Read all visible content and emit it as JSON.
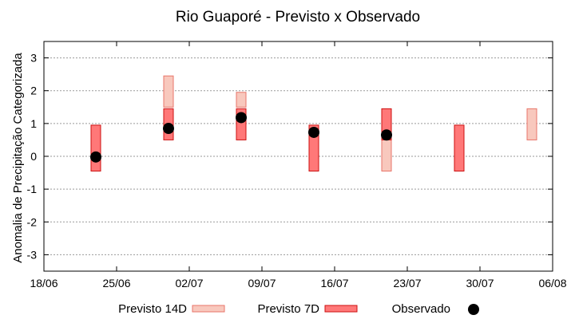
{
  "chart_data": {
    "type": "range-bar",
    "title": "Rio Guaporé - Previsto x Observado",
    "xlabel": "",
    "ylabel": "Anomalia de Precipitação Categorizada",
    "x_tick_labels": [
      "18/06",
      "25/06",
      "02/07",
      "09/07",
      "16/07",
      "23/07",
      "30/07",
      "06/08"
    ],
    "x_ticks": [
      "2023-06-18",
      "2023-06-25",
      "2023-07-02",
      "2023-07-09",
      "2023-07-16",
      "2023-07-23",
      "2023-07-30",
      "2023-08-06"
    ],
    "xlim": [
      "2023-06-18",
      "2023-08-06"
    ],
    "y_ticks": [
      3,
      2,
      1,
      0,
      -1,
      -2,
      -3
    ],
    "ylim": [
      -3.5,
      3.5
    ],
    "grid": true,
    "legend_position": "bottom",
    "series": [
      {
        "name": "Previsto 14D",
        "kind": "range",
        "color": "#f8c8bd",
        "stroke": "#e8756a",
        "points": [
          {
            "x": "2023-06-30",
            "low": 1.5,
            "high": 2.45
          },
          {
            "x": "2023-07-07",
            "low": 1.5,
            "high": 1.95
          },
          {
            "x": "2023-07-21",
            "low": -0.45,
            "high": 0.95
          },
          {
            "x": "2023-08-04",
            "low": 0.5,
            "high": 1.45
          }
        ]
      },
      {
        "name": "Previsto 7D",
        "kind": "range",
        "color": "#ff7878",
        "stroke": "#cc1111",
        "points": [
          {
            "x": "2023-06-23",
            "low": -0.45,
            "high": 0.95
          },
          {
            "x": "2023-06-30",
            "low": 0.5,
            "high": 1.45
          },
          {
            "x": "2023-07-07",
            "low": 0.5,
            "high": 1.45
          },
          {
            "x": "2023-07-14",
            "low": -0.45,
            "high": 0.95
          },
          {
            "x": "2023-07-21",
            "low": 0.5,
            "high": 1.45
          },
          {
            "x": "2023-07-28",
            "low": -0.45,
            "high": 0.95
          }
        ]
      },
      {
        "name": "Observado",
        "kind": "point",
        "color": "#000000",
        "points": [
          {
            "x": "2023-06-23",
            "y": -0.02
          },
          {
            "x": "2023-06-30",
            "y": 0.85
          },
          {
            "x": "2023-07-07",
            "y": 1.18
          },
          {
            "x": "2023-07-14",
            "y": 0.73
          },
          {
            "x": "2023-07-21",
            "y": 0.65
          }
        ]
      }
    ]
  }
}
